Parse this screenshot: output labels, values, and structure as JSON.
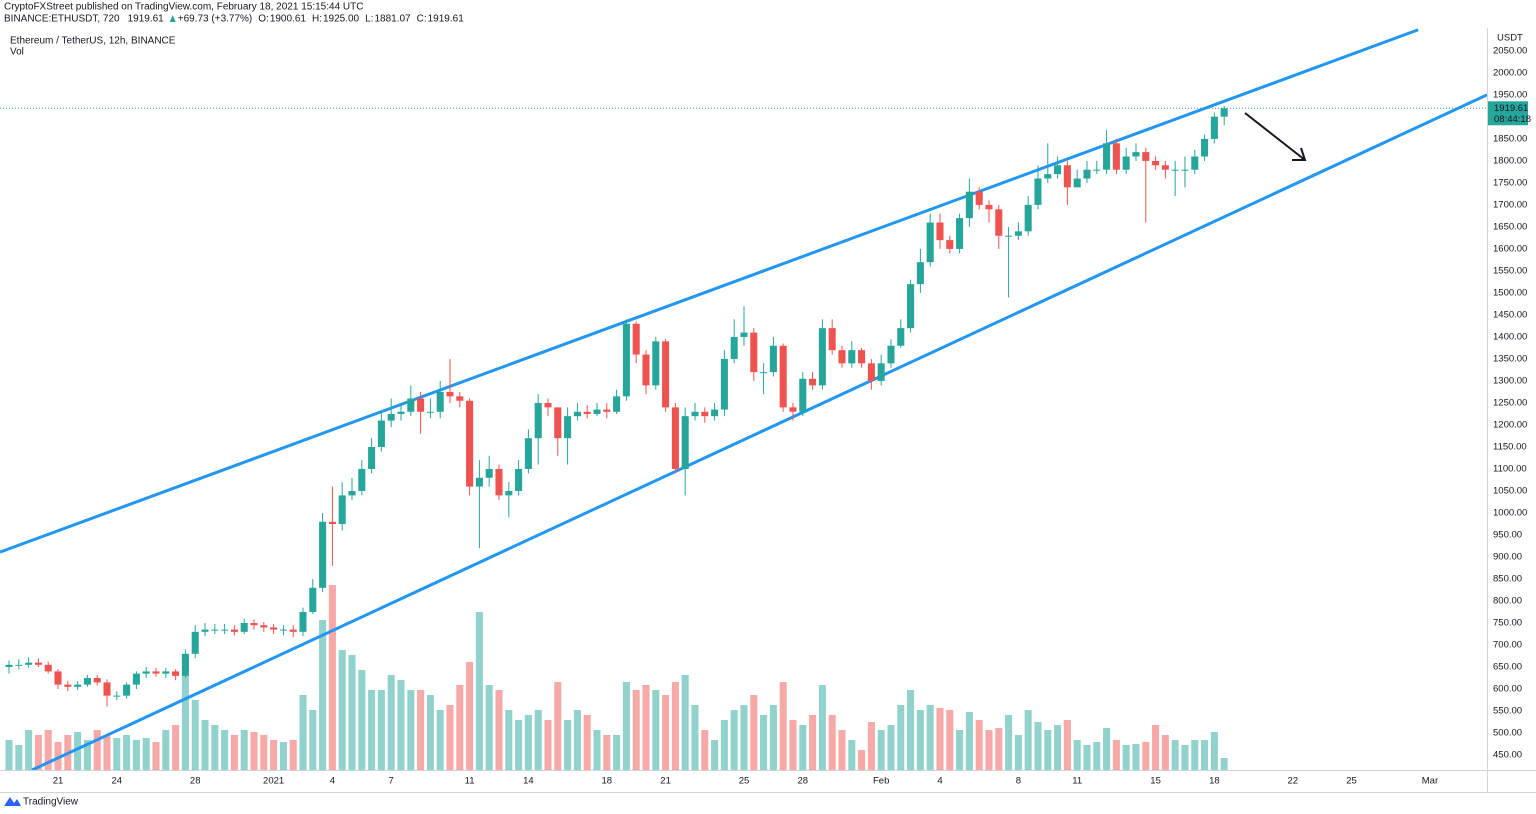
{
  "header": {
    "published": "CryptoFXStreet published on TradingView.com, February 18, 2021 15:15:44 UTC",
    "symbol": "BINANCE:ETHUSDT, 720",
    "price": "1919.61",
    "change": "+69.73 (+3.77%)",
    "ohlc": [
      {
        "label": "O:",
        "value": "1900.61"
      },
      {
        "label": "H:",
        "value": "1925.00"
      },
      {
        "label": "L:",
        "value": "1881.07"
      },
      {
        "label": "C:",
        "value": "1919.61"
      }
    ]
  },
  "footer": {
    "brand": "TradingView"
  },
  "chart_data": {
    "type": "candlestick",
    "title": "Ethereum / TetherUS, 12h, BINANCE",
    "y_unit": "USDT",
    "countdown": "08:44:18",
    "up_color": "#26a69a",
    "down_color": "#ef5350",
    "volume_up_color": "#92d2cc",
    "volume_down_color": "#f7a9a7",
    "grid": false,
    "x": [
      0,
      1,
      2,
      3,
      4,
      5,
      6,
      7,
      8,
      9,
      10,
      11,
      12,
      13,
      14,
      15,
      16,
      17,
      18,
      19,
      20,
      21,
      22,
      23,
      24,
      25,
      26,
      27,
      28,
      29,
      30,
      31,
      32,
      33,
      34,
      35,
      36,
      37,
      38,
      39,
      40,
      41,
      42,
      43,
      44,
      45,
      46,
      47,
      48,
      49,
      50,
      51,
      52,
      53,
      54,
      55,
      56,
      57,
      58,
      59,
      60,
      61,
      62,
      63,
      64,
      65,
      66,
      67,
      68,
      69,
      70,
      71,
      72,
      73,
      74,
      75,
      76,
      77,
      78,
      79,
      80,
      81,
      82,
      83,
      84,
      85,
      86,
      87,
      88,
      89,
      90,
      91,
      92,
      93,
      94,
      95,
      96,
      97,
      98,
      99,
      100,
      101,
      102,
      103,
      104,
      105,
      106,
      107,
      108,
      109,
      110,
      111,
      112,
      113,
      114,
      115,
      116,
      117,
      118,
      119,
      120,
      121,
      122,
      123,
      124
    ],
    "open": [
      650,
      655,
      655,
      660,
      655,
      640,
      610,
      605,
      610,
      625,
      615,
      585,
      585,
      610,
      635,
      640,
      635,
      640,
      630,
      680,
      730,
      735,
      735,
      735,
      730,
      750,
      745,
      740,
      735,
      735,
      730,
      775,
      830,
      980,
      975,
      1040,
      1050,
      1100,
      1150,
      1210,
      1225,
      1230,
      1260,
      1230,
      1230,
      1275,
      1265,
      1255,
      1060,
      1080,
      1100,
      1040,
      1050,
      1100,
      1170,
      1250,
      1240,
      1170,
      1220,
      1230,
      1225,
      1235,
      1230,
      1265,
      1430,
      1360,
      1290,
      1390,
      1240,
      1100,
      1220,
      1230,
      1220,
      1235,
      1350,
      1400,
      1410,
      1320,
      1320,
      1380,
      1240,
      1230,
      1305,
      1290,
      1420,
      1370,
      1340,
      1370,
      1340,
      1300,
      1340,
      1380,
      1420,
      1520,
      1570,
      1660,
      1620,
      1600,
      1670,
      1730,
      1700,
      1690,
      1630,
      1630,
      1640,
      1700,
      1760,
      1770,
      1790,
      1740,
      1760,
      1780,
      1780,
      1840,
      1780,
      1810,
      1820,
      1800,
      1790,
      1780,
      1780,
      1780,
      1810,
      1850,
      1900.61
    ],
    "high": [
      665,
      668,
      672,
      670,
      662,
      645,
      618,
      618,
      632,
      632,
      622,
      595,
      615,
      640,
      650,
      648,
      648,
      645,
      690,
      745,
      750,
      748,
      748,
      745,
      760,
      758,
      752,
      748,
      745,
      745,
      785,
      850,
      1000,
      1060,
      1070,
      1080,
      1120,
      1170,
      1230,
      1260,
      1250,
      1290,
      1275,
      1260,
      1300,
      1350,
      1275,
      1260,
      1120,
      1130,
      1110,
      1070,
      1120,
      1190,
      1270,
      1260,
      1240,
      1240,
      1250,
      1245,
      1250,
      1250,
      1280,
      1440,
      1435,
      1370,
      1400,
      1395,
      1250,
      1240,
      1250,
      1240,
      1250,
      1370,
      1440,
      1470,
      1420,
      1340,
      1400,
      1385,
      1250,
      1320,
      1320,
      1440,
      1440,
      1380,
      1390,
      1375,
      1350,
      1360,
      1395,
      1440,
      1530,
      1600,
      1680,
      1680,
      1630,
      1680,
      1760,
      1740,
      1710,
      1700,
      1650,
      1660,
      1720,
      1790,
      1840,
      1810,
      1800,
      1780,
      1800,
      1800,
      1870,
      1850,
      1830,
      1840,
      1830,
      1810,
      1800,
      1800,
      1810,
      1825,
      1860,
      1910,
      1925
    ],
    "low": [
      635,
      645,
      648,
      650,
      635,
      600,
      595,
      598,
      605,
      608,
      560,
      575,
      578,
      600,
      625,
      628,
      625,
      620,
      625,
      670,
      720,
      725,
      725,
      722,
      725,
      735,
      730,
      725,
      722,
      718,
      720,
      770,
      820,
      880,
      960,
      1030,
      1040,
      1090,
      1140,
      1195,
      1210,
      1220,
      1180,
      1215,
      1215,
      1250,
      1240,
      1040,
      920,
      1060,
      1030,
      990,
      1040,
      1090,
      1110,
      1220,
      1130,
      1110,
      1210,
      1215,
      1220,
      1215,
      1225,
      1255,
      1340,
      1270,
      1280,
      1230,
      1090,
      1040,
      1210,
      1205,
      1210,
      1220,
      1340,
      1380,
      1300,
      1270,
      1310,
      1230,
      1210,
      1220,
      1280,
      1280,
      1360,
      1330,
      1330,
      1330,
      1280,
      1290,
      1330,
      1375,
      1410,
      1500,
      1560,
      1600,
      1590,
      1590,
      1650,
      1690,
      1660,
      1600,
      1490,
      1620,
      1630,
      1690,
      1750,
      1760,
      1700,
      1740,
      1750,
      1770,
      1770,
      1770,
      1770,
      1800,
      1660,
      1780,
      1760,
      1720,
      1740,
      1770,
      1800,
      1840,
      1881.07
    ],
    "close": [
      655,
      655,
      660,
      655,
      640,
      610,
      605,
      610,
      625,
      615,
      585,
      585,
      610,
      635,
      640,
      635,
      640,
      630,
      680,
      730,
      735,
      735,
      735,
      730,
      750,
      745,
      740,
      735,
      735,
      730,
      775,
      830,
      980,
      975,
      1040,
      1050,
      1100,
      1150,
      1210,
      1225,
      1230,
      1260,
      1230,
      1230,
      1275,
      1265,
      1255,
      1060,
      1080,
      1100,
      1040,
      1050,
      1100,
      1170,
      1250,
      1240,
      1170,
      1220,
      1230,
      1225,
      1235,
      1230,
      1265,
      1430,
      1360,
      1290,
      1390,
      1240,
      1100,
      1220,
      1230,
      1220,
      1235,
      1350,
      1400,
      1410,
      1320,
      1320,
      1380,
      1240,
      1230,
      1305,
      1290,
      1420,
      1370,
      1340,
      1370,
      1340,
      1300,
      1340,
      1380,
      1420,
      1520,
      1570,
      1660,
      1620,
      1600,
      1670,
      1730,
      1700,
      1690,
      1630,
      1630,
      1640,
      1700,
      1760,
      1770,
      1790,
      1740,
      1760,
      1780,
      1780,
      1840,
      1780,
      1810,
      1820,
      1800,
      1790,
      1780,
      1780,
      1780,
      1810,
      1850,
      1900.61,
      1919.61
    ],
    "volume": {
      "name": "Vol",
      "values": [
        30,
        25,
        40,
        35,
        40,
        28,
        35,
        38,
        30,
        40,
        35,
        32,
        35,
        30,
        32,
        28,
        40,
        45,
        95,
        70,
        50,
        45,
        40,
        35,
        40,
        38,
        35,
        30,
        28,
        30,
        75,
        60,
        150,
        185,
        120,
        115,
        100,
        80,
        80,
        95,
        90,
        80,
        80,
        75,
        60,
        65,
        85,
        108,
        158,
        85,
        80,
        60,
        50,
        55,
        60,
        50,
        88,
        50,
        60,
        55,
        40,
        35,
        35,
        88,
        80,
        85,
        80,
        75,
        88,
        95,
        65,
        40,
        30,
        50,
        60,
        65,
        75,
        55,
        65,
        88,
        50,
        45,
        55,
        85,
        55,
        40,
        30,
        20,
        48,
        40,
        45,
        65,
        80,
        60,
        65,
        62,
        60,
        40,
        58,
        50,
        40,
        42,
        55,
        35,
        60,
        48,
        40,
        45,
        50,
        30,
        25,
        28,
        42,
        30,
        25,
        26,
        28,
        45,
        35,
        30,
        25,
        30,
        30,
        38,
        12
      ]
    },
    "lines": [
      {
        "color": "#2196f3",
        "x": [
          -0.92,
          143.8
        ],
        "y": [
          911,
          2098
        ]
      },
      {
        "color": "#2196f3",
        "x": [
          2.35,
          150.82
        ],
        "y": [
          416,
          1950
        ]
      }
    ],
    "xlim": [
      -0.92,
      150.82
    ],
    "xticks": [
      {
        "value": 5,
        "label": "21"
      },
      {
        "value": 11,
        "label": "24"
      },
      {
        "value": 19,
        "label": "28"
      },
      {
        "value": 27,
        "label": "2021"
      },
      {
        "value": 33,
        "label": "4"
      },
      {
        "value": 39,
        "label": "7"
      },
      {
        "value": 47,
        "label": "11"
      },
      {
        "value": 53,
        "label": "14"
      },
      {
        "value": 61,
        "label": "18"
      },
      {
        "value": 67,
        "label": "21"
      },
      {
        "value": 75,
        "label": "25"
      },
      {
        "value": 81,
        "label": "28"
      },
      {
        "value": 89,
        "label": "Feb"
      },
      {
        "value": 95,
        "label": "4"
      },
      {
        "value": 103,
        "label": "8"
      },
      {
        "value": 109,
        "label": "11"
      },
      {
        "value": 117,
        "label": "15"
      },
      {
        "value": 123,
        "label": "18"
      },
      {
        "value": 131,
        "label": "22"
      },
      {
        "value": 137,
        "label": "25"
      },
      {
        "value": 145,
        "label": "Mar"
      }
    ],
    "ylim": [
      416,
      2102
    ],
    "yticks": [
      {
        "value": 450,
        "label": "450.00"
      },
      {
        "value": 500,
        "label": "500.00"
      },
      {
        "value": 550,
        "label": "550.00"
      },
      {
        "value": 600,
        "label": "600.00"
      },
      {
        "value": 650,
        "label": "650.00"
      },
      {
        "value": 700,
        "label": "700.00"
      },
      {
        "value": 750,
        "label": "750.00"
      },
      {
        "value": 800,
        "label": "800.00"
      },
      {
        "value": 850,
        "label": "850.00"
      },
      {
        "value": 900,
        "label": "900.00"
      },
      {
        "value": 950,
        "label": "950.00"
      },
      {
        "value": 1000,
        "label": "1000.00"
      },
      {
        "value": 1050,
        "label": "1050.00"
      },
      {
        "value": 1100,
        "label": "1100.00"
      },
      {
        "value": 1150,
        "label": "1150.00"
      },
      {
        "value": 1200,
        "label": "1200.00"
      },
      {
        "value": 1250,
        "label": "1250.00"
      },
      {
        "value": 1300,
        "label": "1300.00"
      },
      {
        "value": 1350,
        "label": "1350.00"
      },
      {
        "value": 1400,
        "label": "1400.00"
      },
      {
        "value": 1450,
        "label": "1450.00"
      },
      {
        "value": 1500,
        "label": "1500.00"
      },
      {
        "value": 1550,
        "label": "1550.00"
      },
      {
        "value": 1600,
        "label": "1600.00"
      },
      {
        "value": 1650,
        "label": "1650.00"
      },
      {
        "value": 1700,
        "label": "1700.00"
      },
      {
        "value": 1750,
        "label": "1750.00"
      },
      {
        "value": 1800,
        "label": "1800.00"
      },
      {
        "value": 1850,
        "label": "1850.00"
      },
      {
        "value": 1900,
        "label": "1900.00"
      },
      {
        "value": 1950,
        "label": "1950.00"
      },
      {
        "value": 2000,
        "label": "2000.00"
      },
      {
        "value": 2050,
        "label": "2050.00"
      }
    ]
  }
}
